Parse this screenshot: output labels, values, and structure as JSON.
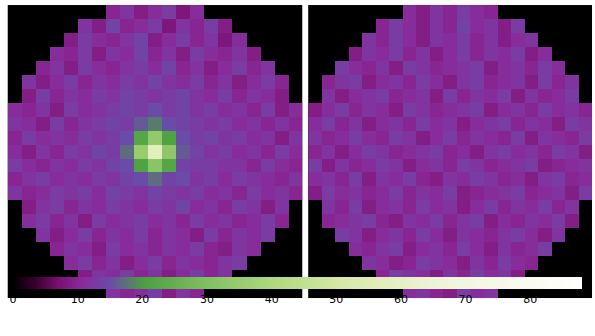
{
  "chart_data": {
    "type": "heatmap",
    "tick_labels": false,
    "panels": [
      {
        "cells": [
          [
            null,
            null,
            null,
            null,
            null,
            null,
            null,
            10,
            12,
            9,
            11,
            13,
            8,
            11,
            null,
            null,
            null,
            null,
            null,
            null,
            null
          ],
          [
            null,
            null,
            null,
            null,
            null,
            12,
            9,
            14,
            10,
            11,
            13,
            8,
            12,
            10,
            13,
            9,
            null,
            null,
            null,
            null,
            null
          ],
          [
            null,
            null,
            null,
            null,
            9,
            13,
            11,
            10,
            12,
            14,
            9,
            11,
            13,
            10,
            12,
            8,
            11,
            null,
            null,
            null,
            null
          ],
          [
            null,
            null,
            null,
            11,
            10,
            13,
            9,
            12,
            11,
            14,
            10,
            12,
            9,
            13,
            11,
            10,
            12,
            9,
            null,
            null,
            null
          ],
          [
            null,
            null,
            10,
            12,
            9,
            13,
            11,
            10,
            12,
            13,
            11,
            14,
            10,
            12,
            9,
            11,
            13,
            10,
            12,
            null,
            null
          ],
          [
            null,
            12,
            9,
            11,
            13,
            10,
            12,
            11,
            13,
            12,
            14,
            12,
            11,
            13,
            10,
            12,
            9,
            11,
            13,
            10,
            null
          ],
          [
            null,
            9,
            13,
            10,
            12,
            11,
            13,
            12,
            14,
            13,
            12,
            13,
            14,
            12,
            11,
            13,
            10,
            12,
            11,
            9,
            null
          ],
          [
            11,
            10,
            12,
            9,
            13,
            11,
            12,
            13,
            14,
            13,
            15,
            13,
            14,
            12,
            13,
            11,
            12,
            10,
            13,
            9,
            11
          ],
          [
            12,
            11,
            9,
            13,
            10,
            12,
            13,
            14,
            13,
            16,
            18,
            15,
            14,
            13,
            12,
            13,
            11,
            12,
            10,
            12,
            10
          ],
          [
            10,
            13,
            11,
            12,
            11,
            13,
            12,
            13,
            15,
            22,
            34,
            21,
            15,
            13,
            14,
            12,
            13,
            11,
            12,
            9,
            12
          ],
          [
            11,
            9,
            12,
            10,
            13,
            12,
            14,
            13,
            17,
            35,
            58,
            33,
            16,
            14,
            12,
            13,
            11,
            12,
            10,
            13,
            11
          ],
          [
            13,
            11,
            10,
            12,
            11,
            13,
            12,
            14,
            15,
            21,
            32,
            22,
            14,
            13,
            13,
            12,
            12,
            10,
            13,
            11,
            10
          ],
          [
            10,
            12,
            13,
            11,
            12,
            11,
            13,
            12,
            14,
            15,
            17,
            14,
            15,
            12,
            13,
            11,
            13,
            12,
            11,
            10,
            12
          ],
          [
            12,
            10,
            11,
            13,
            12,
            13,
            11,
            14,
            13,
            12,
            14,
            13,
            12,
            13,
            11,
            12,
            10,
            13,
            11,
            12,
            10
          ],
          [
            null,
            9,
            12,
            13,
            10,
            12,
            11,
            13,
            12,
            11,
            13,
            12,
            14,
            11,
            12,
            10,
            13,
            12,
            9,
            12,
            null
          ],
          [
            null,
            11,
            13,
            10,
            12,
            9,
            13,
            11,
            12,
            13,
            11,
            12,
            10,
            13,
            11,
            12,
            10,
            11,
            13,
            10,
            null
          ],
          [
            null,
            null,
            12,
            9,
            11,
            13,
            10,
            12,
            11,
            13,
            10,
            12,
            11,
            9,
            13,
            10,
            12,
            11,
            13,
            null,
            null
          ],
          [
            null,
            null,
            null,
            10,
            12,
            11,
            9,
            13,
            11,
            12,
            10,
            12,
            11,
            13,
            10,
            9,
            12,
            11,
            null,
            null,
            null
          ],
          [
            null,
            null,
            null,
            null,
            11,
            13,
            10,
            12,
            9,
            11,
            13,
            10,
            12,
            11,
            10,
            12,
            13,
            null,
            null,
            null,
            null
          ],
          [
            null,
            null,
            null,
            null,
            null,
            9,
            12,
            11,
            13,
            10,
            12,
            9,
            11,
            13,
            10,
            12,
            null,
            null,
            null,
            null,
            null
          ],
          [
            null,
            null,
            null,
            null,
            null,
            null,
            null,
            12,
            10,
            11,
            13,
            9,
            12,
            10,
            null,
            null,
            null,
            null,
            null,
            null,
            null
          ]
        ]
      },
      {
        "cells": [
          [
            null,
            null,
            null,
            null,
            null,
            null,
            null,
            11,
            9,
            12,
            10,
            13,
            11,
            10,
            null,
            null,
            null,
            null,
            null,
            null,
            null
          ],
          [
            null,
            null,
            null,
            null,
            null,
            10,
            13,
            11,
            9,
            12,
            10,
            14,
            11,
            12,
            9,
            13,
            null,
            null,
            null,
            null,
            null
          ],
          [
            null,
            null,
            null,
            null,
            12,
            10,
            13,
            11,
            9,
            12,
            11,
            13,
            10,
            12,
            9,
            11,
            12,
            null,
            null,
            null,
            null
          ],
          [
            null,
            null,
            null,
            9,
            12,
            11,
            13,
            10,
            12,
            9,
            11,
            13,
            10,
            12,
            11,
            13,
            9,
            11,
            null,
            null,
            null
          ],
          [
            null,
            null,
            13,
            11,
            10,
            12,
            9,
            13,
            12,
            10,
            11,
            12,
            13,
            9,
            11,
            12,
            10,
            13,
            11,
            null,
            null
          ],
          [
            null,
            10,
            12,
            13,
            9,
            11,
            12,
            10,
            13,
            11,
            9,
            12,
            13,
            10,
            11,
            12,
            9,
            13,
            10,
            12,
            null
          ],
          [
            null,
            12,
            9,
            11,
            12,
            13,
            10,
            11,
            12,
            9,
            13,
            10,
            12,
            11,
            13,
            9,
            12,
            10,
            11,
            13,
            null
          ],
          [
            9,
            11,
            13,
            10,
            12,
            11,
            9,
            13,
            12,
            10,
            11,
            12,
            13,
            9,
            11,
            12,
            10,
            13,
            11,
            12,
            10
          ],
          [
            11,
            13,
            10,
            12,
            9,
            11,
            12,
            10,
            13,
            11,
            12,
            9,
            11,
            12,
            13,
            10,
            12,
            11,
            9,
            13,
            12
          ],
          [
            12,
            10,
            11,
            13,
            11,
            10,
            13,
            12,
            9,
            11,
            13,
            10,
            12,
            11,
            10,
            13,
            9,
            12,
            11,
            10,
            13
          ],
          [
            10,
            12,
            9,
            11,
            13,
            12,
            10,
            11,
            12,
            13,
            10,
            11,
            9,
            12,
            13,
            11,
            12,
            10,
            13,
            12,
            9
          ],
          [
            13,
            9,
            12,
            10,
            11,
            13,
            12,
            9,
            11,
            12,
            10,
            13,
            12,
            10,
            11,
            12,
            13,
            9,
            10,
            11,
            12
          ],
          [
            11,
            12,
            10,
            13,
            9,
            12,
            11,
            13,
            10,
            9,
            12,
            11,
            13,
            12,
            10,
            11,
            9,
            12,
            13,
            10,
            11
          ],
          [
            9,
            13,
            11,
            12,
            10,
            11,
            13,
            10,
            12,
            11,
            13,
            9,
            10,
            11,
            12,
            13,
            10,
            11,
            12,
            9,
            13
          ],
          [
            null,
            12,
            10,
            13,
            9,
            11,
            12,
            10,
            13,
            11,
            12,
            9,
            11,
            13,
            10,
            12,
            11,
            13,
            10,
            12,
            null
          ],
          [
            null,
            10,
            11,
            12,
            13,
            10,
            9,
            12,
            11,
            13,
            10,
            12,
            13,
            9,
            11,
            10,
            12,
            11,
            13,
            9,
            null
          ],
          [
            null,
            null,
            13,
            12,
            9,
            11,
            12,
            10,
            13,
            11,
            9,
            12,
            11,
            10,
            12,
            13,
            11,
            9,
            12,
            null,
            null
          ],
          [
            null,
            null,
            null,
            11,
            10,
            12,
            13,
            9,
            11,
            12,
            10,
            13,
            11,
            9,
            12,
            10,
            11,
            13,
            null,
            null,
            null
          ],
          [
            null,
            null,
            null,
            null,
            12,
            11,
            9,
            10,
            13,
            12,
            11,
            9,
            12,
            10,
            13,
            11,
            10,
            null,
            null,
            null,
            null
          ],
          [
            null,
            null,
            null,
            null,
            null,
            10,
            13,
            12,
            11,
            9,
            12,
            10,
            13,
            11,
            12,
            9,
            null,
            null,
            null,
            null,
            null
          ],
          [
            null,
            null,
            null,
            null,
            null,
            null,
            null,
            11,
            12,
            10,
            9,
            13,
            11,
            12,
            null,
            null,
            null,
            null,
            null,
            null,
            null
          ]
        ]
      }
    ],
    "colorbar": {
      "range": [
        0,
        88
      ],
      "ticks": [
        0,
        10,
        20,
        30,
        40,
        50,
        60,
        70,
        80
      ]
    }
  }
}
